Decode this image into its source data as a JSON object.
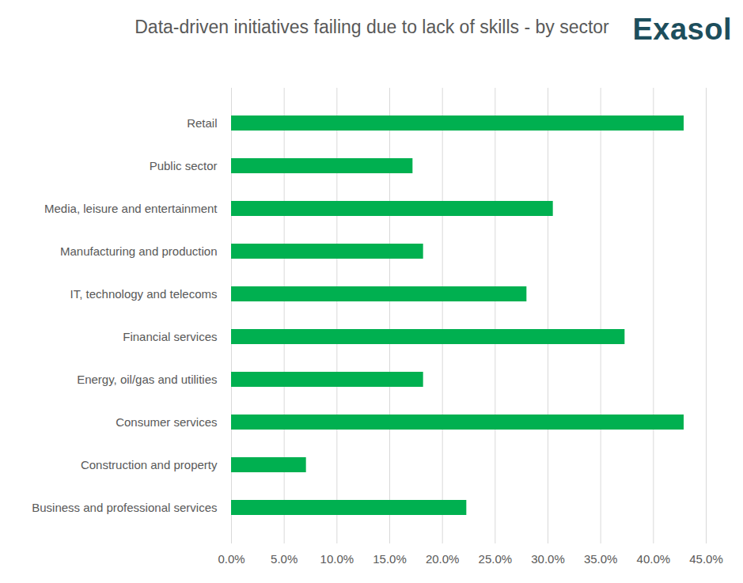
{
  "chart_data": {
    "type": "bar",
    "orientation": "horizontal",
    "title": "Data-driven initiatives failing due to lack of skills - by sector",
    "annotations": [
      "Exasol"
    ],
    "categories": [
      "Retail",
      "Public sector",
      "Media, leisure and entertainment",
      "Manufacturing and production",
      "IT, technology and telecoms",
      "Financial services",
      "Energy, oil/gas and utilities",
      "Consumer services",
      "Construction and property",
      "Business and professional services"
    ],
    "values": [
      42.9,
      17.2,
      30.5,
      18.2,
      28.0,
      37.3,
      18.2,
      42.9,
      7.1,
      22.3
    ],
    "color": "#00b050",
    "xlim": [
      0,
      45
    ],
    "xticks": [
      {
        "value": 0,
        "label": "0.0%"
      },
      {
        "value": 5,
        "label": "5.0%"
      },
      {
        "value": 10,
        "label": "10.0%"
      },
      {
        "value": 15,
        "label": "15.0%"
      },
      {
        "value": 20,
        "label": "20.0%"
      },
      {
        "value": 25,
        "label": "25.0%"
      },
      {
        "value": 30,
        "label": "30.0%"
      },
      {
        "value": 35,
        "label": "35.0%"
      },
      {
        "value": 40,
        "label": "40.0%"
      },
      {
        "value": 45,
        "label": "45.0%"
      }
    ],
    "grid": true
  }
}
